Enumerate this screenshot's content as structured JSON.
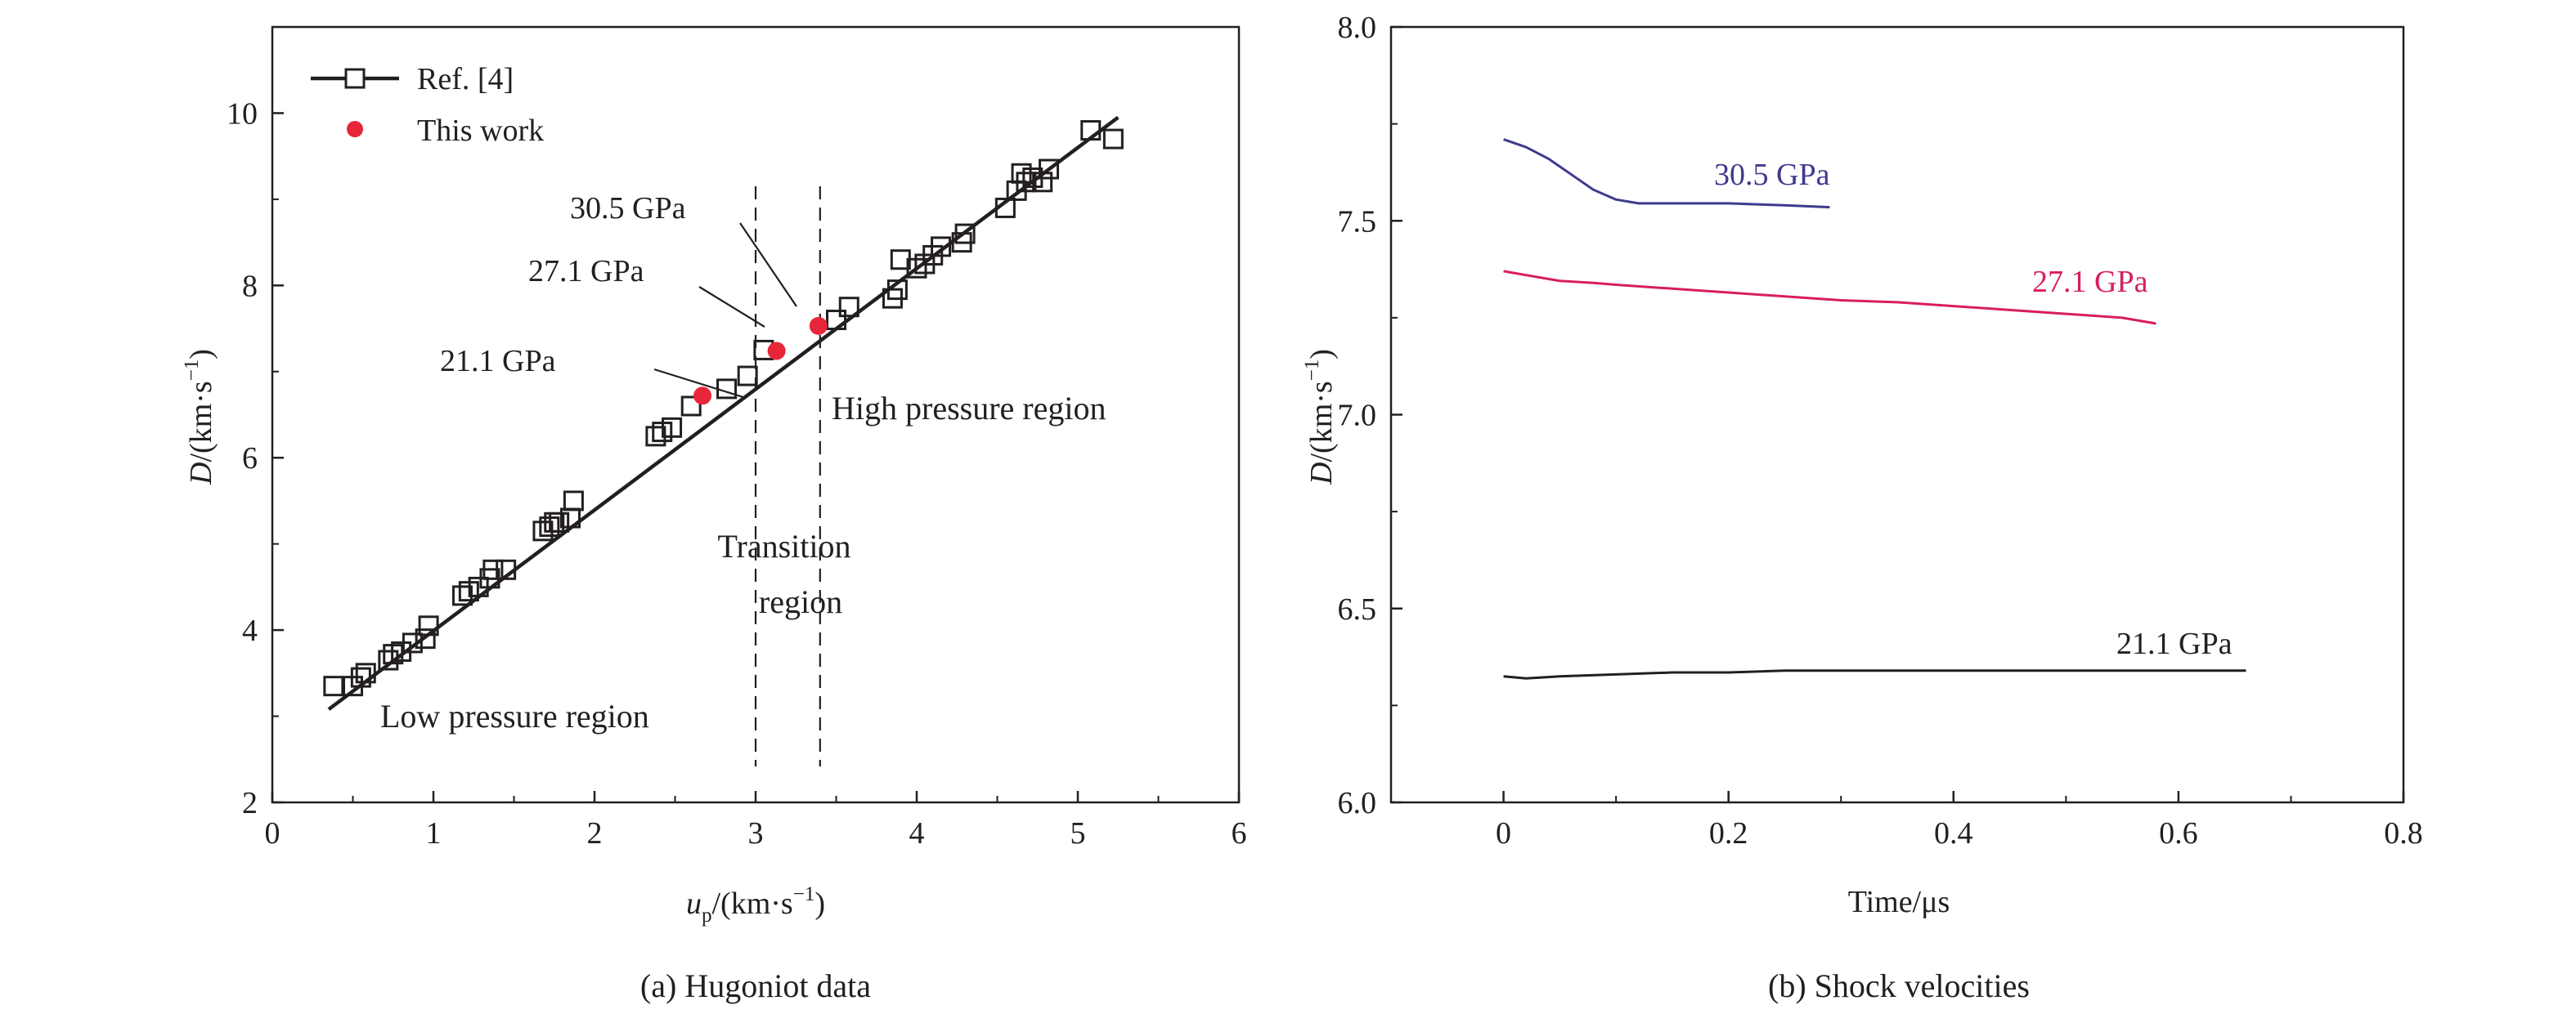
{
  "chart_data": [
    {
      "type": "scatter",
      "caption": "(a) Hugoniot data",
      "xlabel": {
        "main": "u",
        "sub": "p",
        "unit": "/(km·s",
        "exp": "−1",
        "close": ")"
      },
      "ylabel": {
        "main": "D",
        "unit": "/(km·s",
        "exp": "−1",
        "close": ")"
      },
      "xlim": [
        0,
        6
      ],
      "ylim": [
        2,
        11
      ],
      "xticks": [
        "0",
        "1",
        "2",
        "3",
        "4",
        "5",
        "6"
      ],
      "yticks": [
        "2",
        "4",
        "6",
        "8",
        "10"
      ],
      "grid": false,
      "legend_position": "top-left",
      "legend": [
        {
          "label": "Ref. [4]",
          "marker": "open-square-line",
          "color": "#231f20"
        },
        {
          "label": "This work",
          "marker": "filled-circle",
          "color": "#e8263a"
        }
      ],
      "fit_line": {
        "x": [
          0.35,
          5.25
        ],
        "y": [
          3.08,
          9.95
        ]
      },
      "series": [
        {
          "name": "Ref. [4]",
          "x": [
            0.38,
            0.5,
            0.55,
            0.58,
            0.72,
            0.75,
            0.8,
            0.87,
            0.95,
            0.97,
            1.18,
            1.22,
            1.28,
            1.35,
            1.37,
            1.45,
            1.68,
            1.72,
            1.75,
            1.78,
            1.85,
            1.87,
            2.38,
            2.42,
            2.48,
            2.6,
            2.82,
            2.95,
            3.05,
            3.5,
            3.58,
            3.85,
            3.88,
            3.9,
            4.0,
            4.05,
            4.1,
            4.15,
            4.28,
            4.3,
            4.55,
            4.62,
            4.65,
            4.68,
            4.72,
            4.78,
            4.82,
            5.08,
            5.22
          ],
          "y": [
            3.35,
            3.35,
            3.45,
            3.5,
            3.65,
            3.72,
            3.75,
            3.85,
            3.9,
            4.05,
            4.4,
            4.45,
            4.5,
            4.6,
            4.7,
            4.7,
            5.15,
            5.2,
            5.25,
            5.25,
            5.3,
            5.5,
            6.25,
            6.3,
            6.35,
            6.6,
            6.8,
            6.95,
            7.25,
            7.6,
            7.75,
            7.85,
            7.95,
            8.3,
            8.2,
            8.25,
            8.35,
            8.45,
            8.5,
            8.6,
            8.9,
            9.1,
            9.3,
            9.2,
            9.25,
            9.2,
            9.35,
            9.8,
            9.7
          ]
        },
        {
          "name": "This work",
          "x": [
            2.67,
            3.13,
            3.39
          ],
          "y": [
            6.72,
            7.24,
            7.53
          ]
        }
      ],
      "annotations": [
        {
          "text": "21.1 GPa",
          "x": 2.67,
          "y": 6.72
        },
        {
          "text": "27.1 GPa",
          "x": 3.13,
          "y": 7.24
        },
        {
          "text": "30.5 GPa",
          "x": 3.39,
          "y": 7.53
        },
        {
          "text": "Low pressure region"
        },
        {
          "text": "Transition",
          "line2": "region"
        },
        {
          "text": "High pressure region"
        }
      ],
      "vertical_dashed_lines_x": [
        3.0,
        3.4
      ]
    },
    {
      "type": "line",
      "caption": "(b) Shock velocities",
      "xlabel": "Time/μs",
      "ylabel": {
        "main": "D",
        "unit": "/(km·s",
        "exp": "−1",
        "close": ")"
      },
      "xlim": [
        -0.1,
        0.8
      ],
      "ylim": [
        6.0,
        8.0
      ],
      "xticks": [
        "0",
        "0.2",
        "0.4",
        "0.6",
        "0.8"
      ],
      "yticks": [
        "6.0",
        "6.5",
        "7.0",
        "7.5",
        "8.0"
      ],
      "grid": false,
      "series": [
        {
          "name": "30.5 GPa",
          "color": "#3e3a8e",
          "x": [
            0.0,
            0.02,
            0.04,
            0.06,
            0.08,
            0.1,
            0.12,
            0.15,
            0.2,
            0.25,
            0.29
          ],
          "y": [
            7.71,
            7.69,
            7.66,
            7.62,
            7.58,
            7.555,
            7.545,
            7.545,
            7.545,
            7.54,
            7.535
          ]
        },
        {
          "name": "27.1 GPa",
          "color": "#d81e5b",
          "x": [
            0.0,
            0.02,
            0.05,
            0.08,
            0.1,
            0.15,
            0.2,
            0.25,
            0.3,
            0.35,
            0.4,
            0.45,
            0.5,
            0.55,
            0.58
          ],
          "y": [
            7.37,
            7.36,
            7.345,
            7.34,
            7.335,
            7.325,
            7.315,
            7.305,
            7.295,
            7.29,
            7.28,
            7.27,
            7.26,
            7.25,
            7.235
          ]
        },
        {
          "name": "21.1 GPa",
          "color": "#231f20",
          "x": [
            0.0,
            0.02,
            0.05,
            0.1,
            0.15,
            0.2,
            0.25,
            0.3,
            0.35,
            0.4,
            0.45,
            0.5,
            0.55,
            0.6,
            0.66
          ],
          "y": [
            6.325,
            6.32,
            6.325,
            6.33,
            6.335,
            6.335,
            6.34,
            6.34,
            6.34,
            6.34,
            6.34,
            6.34,
            6.34,
            6.34,
            6.34
          ]
        }
      ]
    }
  ]
}
